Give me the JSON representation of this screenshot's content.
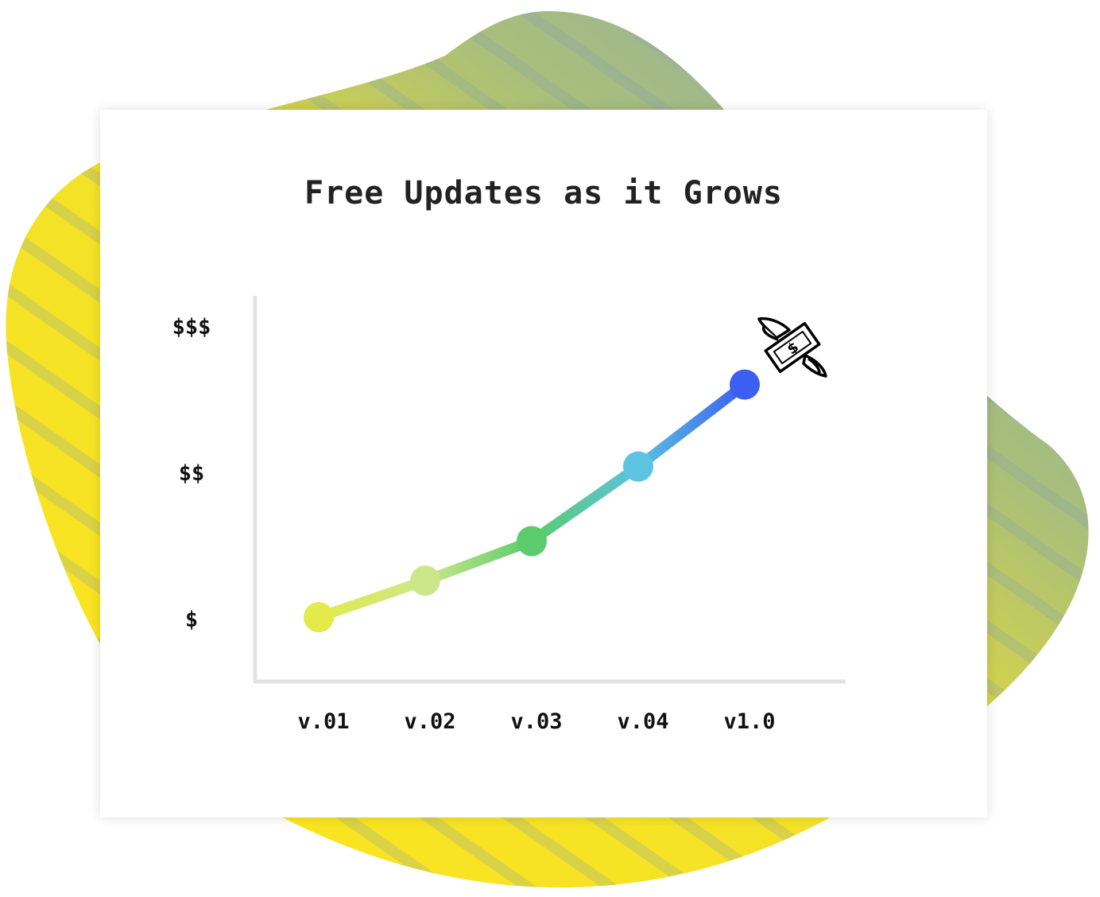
{
  "chart_data": {
    "type": "line",
    "title": "Free Updates as it Grows",
    "xlabel": "",
    "ylabel": "",
    "categories": [
      "v.01",
      "v.02",
      "v.03",
      "v.04",
      "v1.0"
    ],
    "values": [
      1.01,
      1.26,
      1.53,
      2.04,
      2.6
    ],
    "y_ticks": [
      {
        "value": 1,
        "label": "$"
      },
      {
        "value": 2,
        "label": "$$"
      },
      {
        "value": 3,
        "label": "$$$"
      }
    ],
    "ylim": [
      0.6,
      3.4
    ],
    "grid": false,
    "point_colors": [
      "#e3ea4a",
      "#cbe78a",
      "#5bcb6e",
      "#5cc3e0",
      "#3b5ff0"
    ],
    "annotation_icon": "flying-money-icon"
  },
  "colors": {
    "background_yellow": "#fde51c",
    "background_blue": "#8aa8b4",
    "axis": "#e3e3e3"
  }
}
